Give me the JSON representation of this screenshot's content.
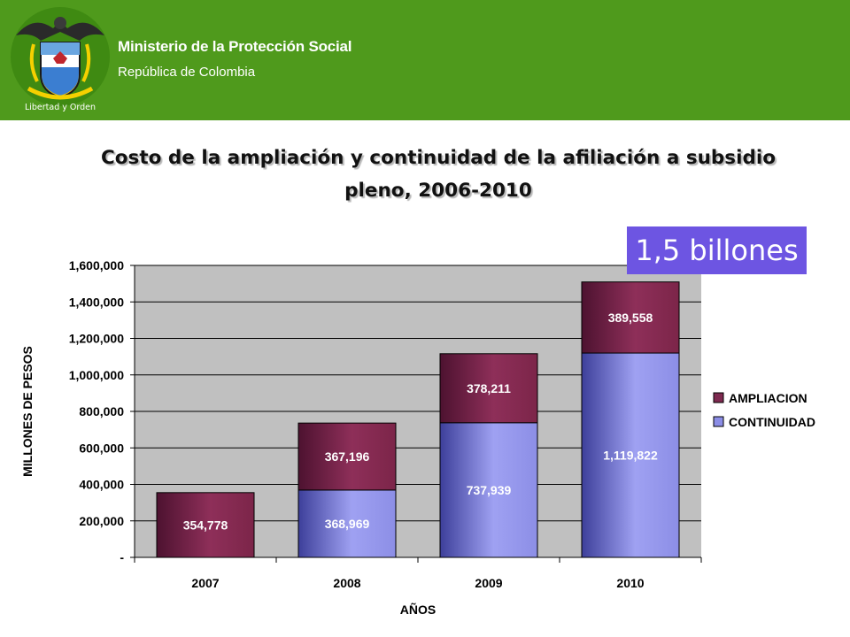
{
  "header": {
    "ministry": "Ministerio de la Protección Social",
    "republic": "República de Colombia",
    "motto": "Libertad y Orden"
  },
  "title": "Costo de la ampliación y continuidad de la afiliación a subsidio pleno, 2006-2010",
  "callout": "1,5 billones",
  "colors": {
    "header": "#4f9a1c",
    "ampliacion": "#8b2c55",
    "continuidad": "#9a9cf0",
    "plot_bg": "#c0c0c0",
    "callout": "#6d55e2"
  },
  "chart_data": {
    "type": "bar",
    "stacked": true,
    "categories": [
      "2007",
      "2008",
      "2009",
      "2010"
    ],
    "series": [
      {
        "name": "CONTINUIDAD",
        "values": [
          0,
          368969,
          737939,
          1119822
        ],
        "labels": [
          "",
          "368,969",
          "737,939",
          "1,119,822"
        ]
      },
      {
        "name": "AMPLIACION",
        "values": [
          354778,
          367196,
          378211,
          389558
        ],
        "labels": [
          "354,778",
          "367,196",
          "378,211",
          "389,558"
        ]
      }
    ],
    "xlabel": "AÑOS",
    "ylabel": "MILLONES DE PESOS",
    "ylim": [
      0,
      1600000
    ],
    "yticks": [
      0,
      200000,
      400000,
      600000,
      800000,
      1000000,
      1200000,
      1400000,
      1600000
    ],
    "ytick_labels": [
      "-",
      "200,000",
      "400,000",
      "600,000",
      "800,000",
      "1,000,000",
      "1,200,000",
      "1,400,000",
      "1,600,000"
    ],
    "grid": true,
    "legend_position": "right"
  }
}
